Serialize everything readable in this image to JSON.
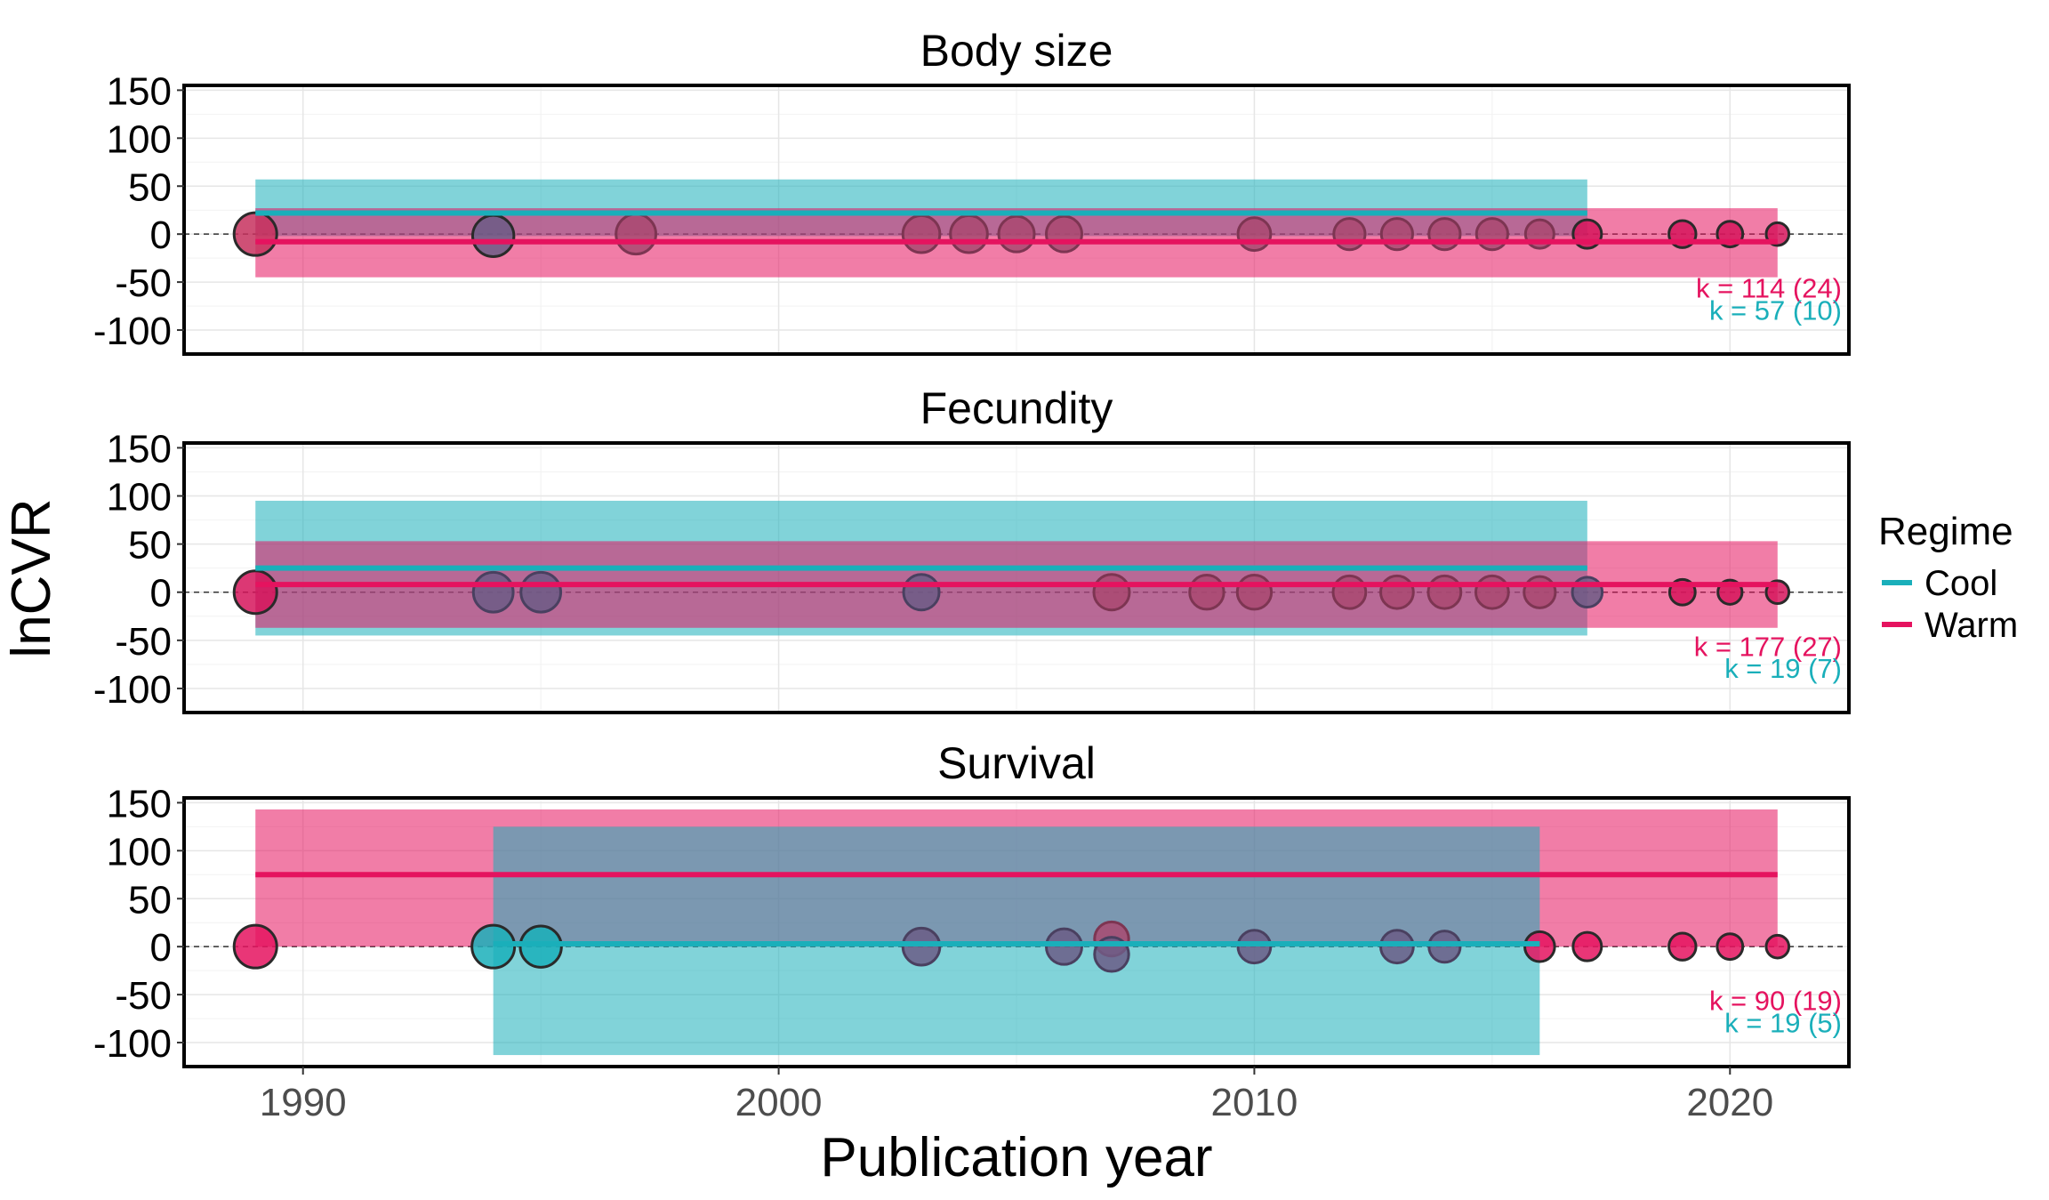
{
  "chart_data": {
    "type": "scatter",
    "xlabel": "Publication year",
    "ylabel": "lnCVR",
    "xlim": [
      1987.5,
      2022.5
    ],
    "ylim": [
      -125,
      155
    ],
    "x_ticks": [
      1990,
      2000,
      2010,
      2020
    ],
    "y_ticks": [
      150,
      100,
      50,
      0,
      -50,
      -100
    ],
    "grid": true,
    "reference_line": 0,
    "colors": {
      "Cool": "#1AAFBA",
      "Warm": "#E5135F"
    },
    "legend": {
      "title": "Regime",
      "placement": "right",
      "items": [
        {
          "label": "Cool",
          "color": "#1AAFBA"
        },
        {
          "label": "Warm",
          "color": "#E5135F"
        }
      ]
    },
    "panels": [
      {
        "title": "Body size",
        "regression": [
          {
            "regime": "Cool",
            "x": [
              1989,
              2017
            ],
            "estimate": 22,
            "ci": [
              -2,
              57
            ]
          },
          {
            "regime": "Warm",
            "x": [
              1989,
              2021
            ],
            "estimate": -8,
            "ci": [
              -45,
              27
            ]
          }
        ],
        "labels": [
          {
            "regime": "Warm",
            "text": "k = 114 (24)"
          },
          {
            "regime": "Cool",
            "text": "k = 57 (10)"
          }
        ],
        "points": [
          {
            "x": 1989,
            "y": 0,
            "size": 1.0,
            "fill": "#C7315E",
            "edge": "#2A2A2A"
          },
          {
            "x": 1994,
            "y": -2,
            "size": 0.95,
            "fill": "#6B5C86",
            "edge": "#2A2A2A"
          },
          {
            "x": 1997,
            "y": 0,
            "size": 0.9,
            "fill": "#A94971",
            "edge": "#7D3552"
          },
          {
            "x": 2003,
            "y": 0,
            "size": 0.8,
            "fill": "#A94971",
            "edge": "#7D3552"
          },
          {
            "x": 2004,
            "y": 0,
            "size": 0.8,
            "fill": "#A94971",
            "edge": "#7D3552"
          },
          {
            "x": 2005,
            "y": 0,
            "size": 0.75,
            "fill": "#A94971",
            "edge": "#7D3552"
          },
          {
            "x": 2006,
            "y": 0,
            "size": 0.75,
            "fill": "#A94971",
            "edge": "#7D3552"
          },
          {
            "x": 2010,
            "y": 0,
            "size": 0.65,
            "fill": "#A94971",
            "edge": "#7D3552"
          },
          {
            "x": 2012,
            "y": 0,
            "size": 0.6,
            "fill": "#A94971",
            "edge": "#7D3552"
          },
          {
            "x": 2013,
            "y": 0,
            "size": 0.6,
            "fill": "#A94971",
            "edge": "#7D3552"
          },
          {
            "x": 2014,
            "y": 0,
            "size": 0.6,
            "fill": "#A94971",
            "edge": "#7D3552"
          },
          {
            "x": 2015,
            "y": 0,
            "size": 0.6,
            "fill": "#A94971",
            "edge": "#7D3552"
          },
          {
            "x": 2016,
            "y": 0,
            "size": 0.5,
            "fill": "#A94971",
            "edge": "#7D3552"
          },
          {
            "x": 2017,
            "y": 0,
            "size": 0.5,
            "fill": "#D6155C",
            "edge": "#2A2A2A"
          },
          {
            "x": 2019,
            "y": 0,
            "size": 0.45,
            "fill": "#D6155C",
            "edge": "#2A2A2A"
          },
          {
            "x": 2020,
            "y": 0,
            "size": 0.4,
            "fill": "#D6155C",
            "edge": "#2A2A2A"
          },
          {
            "x": 2021,
            "y": 0,
            "size": 0.3,
            "fill": "#D6155C",
            "edge": "#2A2A2A"
          }
        ]
      },
      {
        "title": "Fecundity",
        "regression": [
          {
            "regime": "Cool",
            "x": [
              1989,
              2017
            ],
            "estimate": 25,
            "ci": [
              -45,
              95
            ]
          },
          {
            "regime": "Warm",
            "x": [
              1989,
              2021
            ],
            "estimate": 8,
            "ci": [
              -37,
              53
            ]
          }
        ],
        "labels": [
          {
            "regime": "Warm",
            "text": "k = 177 (27)"
          },
          {
            "regime": "Cool",
            "text": "k = 19 (7)"
          }
        ],
        "points": [
          {
            "x": 1989,
            "y": 0,
            "size": 1.0,
            "fill": "#D6155C",
            "edge": "#2A2A2A"
          },
          {
            "x": 1994,
            "y": 0,
            "size": 0.9,
            "fill": "#6B5C86",
            "edge": "#4A4060"
          },
          {
            "x": 1995,
            "y": 0,
            "size": 0.9,
            "fill": "#6B5C86",
            "edge": "#4A4060"
          },
          {
            "x": 2003,
            "y": 0,
            "size": 0.75,
            "fill": "#6B5C86",
            "edge": "#4A4060"
          },
          {
            "x": 2007,
            "y": 0,
            "size": 0.75,
            "fill": "#A94971",
            "edge": "#7D3552"
          },
          {
            "x": 2009,
            "y": 0,
            "size": 0.7,
            "fill": "#A94971",
            "edge": "#7D3552"
          },
          {
            "x": 2010,
            "y": 0,
            "size": 0.7,
            "fill": "#A94971",
            "edge": "#7D3552"
          },
          {
            "x": 2012,
            "y": 0,
            "size": 0.65,
            "fill": "#A94971",
            "edge": "#7D3552"
          },
          {
            "x": 2013,
            "y": 0,
            "size": 0.65,
            "fill": "#A94971",
            "edge": "#7D3552"
          },
          {
            "x": 2014,
            "y": 0,
            "size": 0.65,
            "fill": "#A94971",
            "edge": "#7D3552"
          },
          {
            "x": 2015,
            "y": 0,
            "size": 0.65,
            "fill": "#A94971",
            "edge": "#7D3552"
          },
          {
            "x": 2016,
            "y": 0,
            "size": 0.6,
            "fill": "#A94971",
            "edge": "#7D3552"
          },
          {
            "x": 2017,
            "y": 0,
            "size": 0.55,
            "fill": "#6B5C86",
            "edge": "#4A4060"
          },
          {
            "x": 2019,
            "y": 0,
            "size": 0.4,
            "fill": "#D6155C",
            "edge": "#2A2A2A"
          },
          {
            "x": 2020,
            "y": 0,
            "size": 0.35,
            "fill": "#D6155C",
            "edge": "#2A2A2A"
          },
          {
            "x": 2021,
            "y": 0,
            "size": 0.3,
            "fill": "#D6155C",
            "edge": "#2A2A2A"
          }
        ]
      },
      {
        "title": "Survival",
        "regression": [
          {
            "regime": "Warm",
            "x": [
              1989,
              2021
            ],
            "estimate": 75,
            "ci": [
              0,
              143
            ]
          },
          {
            "regime": "Cool",
            "x": [
              1994,
              2016
            ],
            "estimate": 3,
            "ci": [
              -113,
              125
            ]
          }
        ],
        "labels": [
          {
            "regime": "Warm",
            "text": "k = 90 (19)"
          },
          {
            "regime": "Cool",
            "text": "k = 19 (5)"
          }
        ],
        "points": [
          {
            "x": 1989,
            "y": 0,
            "size": 1.0,
            "fill": "#E5135F",
            "edge": "#2A2A2A"
          },
          {
            "x": 1994,
            "y": 0,
            "size": 1.0,
            "fill": "#1AAFBA",
            "edge": "#2A2A2A"
          },
          {
            "x": 1995,
            "y": 0,
            "size": 0.95,
            "fill": "#1AAFBA",
            "edge": "#2A2A2A"
          },
          {
            "x": 2003,
            "y": 0,
            "size": 0.8,
            "fill": "#6B5C86",
            "edge": "#4A4060"
          },
          {
            "x": 2006,
            "y": 0,
            "size": 0.75,
            "fill": "#6B5C86",
            "edge": "#4A4060"
          },
          {
            "x": 2007,
            "y": 8,
            "size": 0.7,
            "fill": "#A94971",
            "edge": "#7D3552"
          },
          {
            "x": 2007,
            "y": -8,
            "size": 0.7,
            "fill": "#6B5C86",
            "edge": "#4A4060"
          },
          {
            "x": 2010,
            "y": 0,
            "size": 0.65,
            "fill": "#6B5C86",
            "edge": "#4A4060"
          },
          {
            "x": 2013,
            "y": 0,
            "size": 0.65,
            "fill": "#6B5C86",
            "edge": "#4A4060"
          },
          {
            "x": 2014,
            "y": 0,
            "size": 0.6,
            "fill": "#6B5C86",
            "edge": "#4A4060"
          },
          {
            "x": 2016,
            "y": 0,
            "size": 0.55,
            "fill": "#E5135F",
            "edge": "#2A2A2A"
          },
          {
            "x": 2017,
            "y": 0,
            "size": 0.5,
            "fill": "#E5135F",
            "edge": "#2A2A2A"
          },
          {
            "x": 2019,
            "y": 0,
            "size": 0.45,
            "fill": "#E5135F",
            "edge": "#2A2A2A"
          },
          {
            "x": 2020,
            "y": 0,
            "size": 0.4,
            "fill": "#E5135F",
            "edge": "#2A2A2A"
          },
          {
            "x": 2021,
            "y": 0,
            "size": 0.3,
            "fill": "#E5135F",
            "edge": "#2A2A2A"
          }
        ]
      }
    ]
  }
}
